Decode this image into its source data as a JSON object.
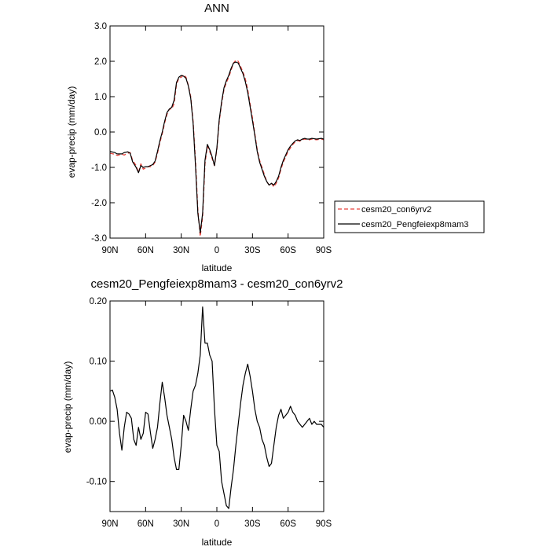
{
  "chart_data": [
    {
      "type": "line",
      "title": "ANN",
      "xlabel": "latitude",
      "ylabel": "evap-precip (mm/day)",
      "xticks": [
        {
          "value": -90,
          "label": "90N"
        },
        {
          "value": -60,
          "label": "60N"
        },
        {
          "value": -30,
          "label": "30N"
        },
        {
          "value": 0,
          "label": "0"
        },
        {
          "value": 30,
          "label": "30S"
        },
        {
          "value": 60,
          "label": "60S"
        },
        {
          "value": 90,
          "label": "90S"
        }
      ],
      "yticks": [
        {
          "value": 3.0,
          "label": "3.0"
        },
        {
          "value": 2.0,
          "label": "2.0"
        },
        {
          "value": 1.0,
          "label": "1.0"
        },
        {
          "value": 0.0,
          "label": "0.0"
        },
        {
          "value": -1.0,
          "label": "-1.0"
        },
        {
          "value": -2.0,
          "label": "-2.0"
        },
        {
          "value": -3.0,
          "label": "-3.0"
        }
      ],
      "xlim": [
        -90,
        90
      ],
      "ylim": [
        -3.0,
        3.0
      ],
      "grid": false,
      "legend_placement": "right",
      "x": [
        -90,
        -86,
        -84,
        -80,
        -78,
        -75,
        -73,
        -71,
        -68,
        -66,
        -64,
        -62,
        -60,
        -58,
        -56,
        -54,
        -52,
        -50,
        -48,
        -46,
        -44,
        -42,
        -40,
        -38,
        -36,
        -34,
        -32,
        -30,
        -28,
        -26,
        -24,
        -22,
        -20,
        -18,
        -16,
        -14,
        -12,
        -10,
        -8,
        -6,
        -4,
        -2,
        0,
        2,
        4,
        6,
        8,
        10,
        12,
        14,
        16,
        18,
        20,
        22,
        24,
        26,
        28,
        30,
        32,
        34,
        36,
        38,
        40,
        42,
        44,
        46,
        48,
        50,
        52,
        54,
        56,
        58,
        60,
        62,
        64,
        66,
        68,
        70,
        72,
        74,
        76,
        78,
        80,
        84,
        88,
        90
      ],
      "series": [
        {
          "name": "cesm20_con6yrv2",
          "color": "#e8423c",
          "dash": "dashed",
          "values": [
            -0.6,
            -0.63,
            -0.66,
            -0.63,
            -0.65,
            -0.6,
            -0.58,
            -0.8,
            -0.95,
            -1.15,
            -0.9,
            -1.05,
            -1.02,
            -0.98,
            -0.98,
            -0.95,
            -0.85,
            -0.6,
            -0.3,
            -0.05,
            0.25,
            0.5,
            0.65,
            0.65,
            0.8,
            1.35,
            1.52,
            1.55,
            1.62,
            1.55,
            1.32,
            1.0,
            0.3,
            -0.8,
            -2.2,
            -2.95,
            -2.4,
            -0.9,
            -0.4,
            -0.55,
            -0.75,
            -0.95,
            -0.5,
            0.3,
            0.8,
            1.2,
            1.4,
            1.55,
            1.75,
            1.95,
            2.03,
            2.0,
            1.85,
            1.7,
            1.5,
            1.2,
            0.8,
            0.4,
            -0.05,
            -0.5,
            -0.8,
            -1.0,
            -1.2,
            -1.4,
            -1.5,
            -1.45,
            -1.55,
            -1.45,
            -1.3,
            -1.05,
            -0.85,
            -0.7,
            -0.55,
            -0.45,
            -0.35,
            -0.28,
            -0.24,
            -0.26,
            -0.22,
            -0.2,
            -0.22,
            -0.22,
            -0.2,
            -0.22,
            -0.2,
            -0.22
          ]
        },
        {
          "name": "cesm20_Pengfeiexp8mam3",
          "color": "#000000",
          "dash": "solid",
          "values": [
            -0.55,
            -0.58,
            -0.62,
            -0.62,
            -0.58,
            -0.56,
            -0.6,
            -0.84,
            -1.0,
            -1.15,
            -0.95,
            -1.0,
            -0.98,
            -0.98,
            -0.95,
            -0.92,
            -0.82,
            -0.55,
            -0.25,
            0.0,
            0.3,
            0.55,
            0.65,
            0.7,
            0.9,
            1.4,
            1.55,
            1.6,
            1.58,
            1.52,
            1.3,
            0.95,
            0.25,
            -0.95,
            -2.3,
            -2.85,
            -2.3,
            -0.8,
            -0.35,
            -0.5,
            -0.7,
            -0.95,
            -0.45,
            0.35,
            0.85,
            1.25,
            1.45,
            1.6,
            1.8,
            1.95,
            1.98,
            1.95,
            1.8,
            1.65,
            1.42,
            1.12,
            0.72,
            0.32,
            -0.1,
            -0.55,
            -0.85,
            -1.05,
            -1.25,
            -1.4,
            -1.5,
            -1.45,
            -1.5,
            -1.4,
            -1.25,
            -1.0,
            -0.8,
            -0.65,
            -0.5,
            -0.4,
            -0.32,
            -0.25,
            -0.22,
            -0.24,
            -0.2,
            -0.18,
            -0.2,
            -0.2,
            -0.18,
            -0.2,
            -0.18,
            -0.2
          ]
        }
      ]
    },
    {
      "type": "line",
      "title": "cesm20_Pengfeiexp8mam3 - cesm20_con6yrv2",
      "xlabel": "latitude",
      "ylabel": "evap-precip (mm/day)",
      "xticks": [
        {
          "value": -90,
          "label": "90N"
        },
        {
          "value": -60,
          "label": "60N"
        },
        {
          "value": -30,
          "label": "30N"
        },
        {
          "value": 0,
          "label": "0"
        },
        {
          "value": 30,
          "label": "30S"
        },
        {
          "value": 60,
          "label": "60S"
        },
        {
          "value": 90,
          "label": "90S"
        }
      ],
      "yticks": [
        {
          "value": 0.2,
          "label": "0.20"
        },
        {
          "value": 0.1,
          "label": "0.10"
        },
        {
          "value": 0.0,
          "label": "0.00"
        },
        {
          "value": -0.1,
          "label": "-0.10"
        }
      ],
      "xlim": [
        -90,
        90
      ],
      "ylim": [
        -0.15,
        0.2
      ],
      "grid": false,
      "series": [
        {
          "color": "#000000",
          "dash": "solid",
          "x": [
            -90,
            -88,
            -86,
            -84,
            -82,
            -80,
            -78,
            -76,
            -74,
            -72,
            -70,
            -68,
            -66,
            -64,
            -62,
            -60,
            -58,
            -56,
            -54,
            -52,
            -50,
            -48,
            -46,
            -44,
            -42,
            -40,
            -38,
            -36,
            -34,
            -32,
            -30,
            -28,
            -26,
            -24,
            -22,
            -20,
            -18,
            -16,
            -14,
            -12,
            -10,
            -8,
            -6,
            -4,
            -2,
            0,
            2,
            4,
            6,
            8,
            10,
            12,
            14,
            16,
            18,
            20,
            22,
            24,
            26,
            28,
            30,
            32,
            34,
            36,
            38,
            40,
            42,
            44,
            46,
            48,
            50,
            52,
            54,
            56,
            58,
            60,
            62,
            64,
            66,
            68,
            70,
            72,
            74,
            76,
            78,
            80,
            82,
            84,
            86,
            88,
            90
          ],
          "values": [
            0.05,
            0.052,
            0.04,
            0.02,
            -0.02,
            -0.048,
            -0.01,
            0.015,
            0.012,
            0.005,
            -0.03,
            -0.04,
            -0.01,
            -0.03,
            -0.02,
            0.015,
            0.012,
            -0.018,
            -0.045,
            -0.03,
            -0.01,
            0.03,
            0.065,
            0.04,
            0.01,
            -0.01,
            -0.03,
            -0.06,
            -0.08,
            -0.08,
            -0.04,
            0.01,
            0.0,
            -0.015,
            0.02,
            0.05,
            0.06,
            0.08,
            0.11,
            0.19,
            0.13,
            0.13,
            0.11,
            0.1,
            0.02,
            -0.04,
            -0.05,
            -0.1,
            -0.12,
            -0.14,
            -0.145,
            -0.11,
            -0.08,
            -0.04,
            -0.005,
            0.03,
            0.06,
            0.08,
            0.095,
            0.075,
            0.05,
            0.02,
            0.0,
            -0.01,
            -0.03,
            -0.04,
            -0.06,
            -0.075,
            -0.07,
            -0.04,
            -0.01,
            0.01,
            0.02,
            0.005,
            0.01,
            0.015,
            0.025,
            0.015,
            0.01,
            0.0,
            -0.005,
            -0.01,
            -0.005,
            0.0,
            0.005,
            -0.005,
            0.0,
            -0.005,
            -0.005,
            -0.005,
            -0.01
          ]
        }
      ]
    }
  ]
}
